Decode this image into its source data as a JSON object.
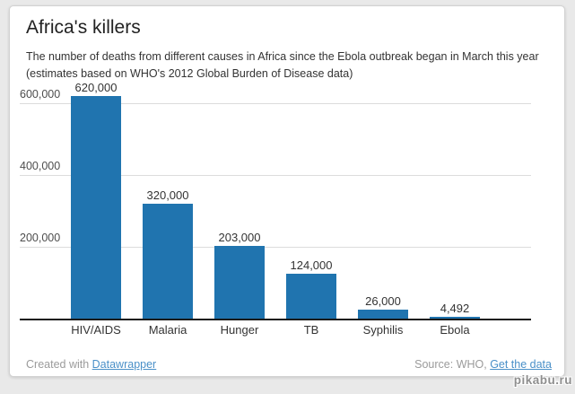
{
  "card": {
    "title": "Africa's killers",
    "subtitle_line1": "The number of deaths from different causes in Africa since the Ebola outbreak began in March this year",
    "subtitle_line2": "(estimates based on WHO's 2012 Global Burden of Disease data)",
    "footer": {
      "created_prefix": "Created with ",
      "created_link": "Datawrapper",
      "source_prefix": "Source: WHO, ",
      "source_link": "Get the data"
    }
  },
  "watermark": "pikabu.ru",
  "chart_data": {
    "type": "bar",
    "title": "Africa's killers",
    "subtitle": "The number of deaths from different causes in Africa since the Ebola outbreak began in March this year (estimates based on WHO's 2012 Global Burden of Disease data)",
    "categories": [
      "HIV/AIDS",
      "Malaria",
      "Hunger",
      "TB",
      "Syphilis",
      "Ebola"
    ],
    "values": [
      620000,
      320000,
      203000,
      124000,
      26000,
      4492
    ],
    "value_labels": [
      "620,000",
      "320,000",
      "203,000",
      "124,000",
      "26,000",
      "4,492"
    ],
    "yticks": [
      {
        "value": 200000,
        "label": "200,000"
      },
      {
        "value": 400000,
        "label": "400,000"
      },
      {
        "value": 600000,
        "label": "600,000"
      }
    ],
    "ylim": [
      0,
      650000
    ],
    "xlabel": "",
    "ylabel": "",
    "grid": true,
    "legend": "none",
    "bar_color": "#2074af",
    "baseline_color": "#1a1a1a",
    "gridline_color": "#dcdcdc",
    "source_text": "Source: WHO",
    "created_with": "Created with Datawrapper"
  }
}
